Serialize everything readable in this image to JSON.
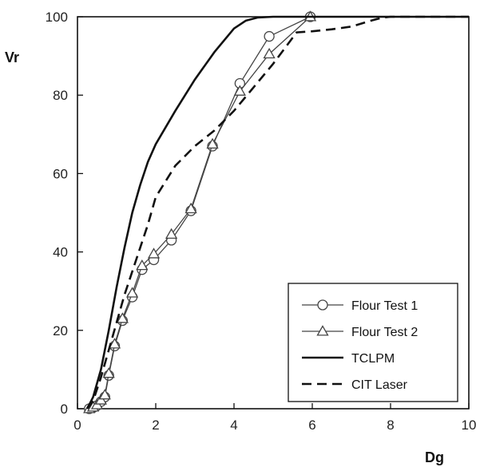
{
  "chart_data": {
    "type": "line",
    "xlabel": "Dg",
    "ylabel": "Vr",
    "xlim": [
      0,
      10
    ],
    "ylim": [
      0,
      100
    ],
    "x_ticks": [
      "0",
      "2",
      "4",
      "6",
      "8",
      "10"
    ],
    "y_ticks": [
      "0",
      "20",
      "40",
      "60",
      "80",
      "100"
    ],
    "grid": false,
    "legend_position": "bottom-right",
    "series": [
      {
        "name": "Flour Test 1",
        "style": "solid-marker-circle",
        "x": [
          0.3,
          0.4,
          0.5,
          0.6,
          0.7,
          0.8,
          0.95,
          1.15,
          1.4,
          1.65,
          1.95,
          2.4,
          2.9,
          3.45,
          4.15,
          4.9,
          5.95
        ],
        "y": [
          0,
          0.3,
          0.8,
          1.8,
          3.0,
          8.5,
          16,
          22.5,
          28.5,
          35.5,
          38,
          43,
          50.5,
          67,
          83,
          95,
          100
        ]
      },
      {
        "name": "Flour Test 2",
        "style": "solid-marker-triangle",
        "x": [
          0.3,
          0.4,
          0.5,
          0.6,
          0.7,
          0.8,
          0.95,
          1.15,
          1.4,
          1.65,
          1.95,
          2.4,
          2.9,
          3.45,
          4.15,
          4.9,
          5.95
        ],
        "y": [
          0,
          0.4,
          1.0,
          2.2,
          3.5,
          9,
          16.5,
          23,
          29.5,
          36.5,
          39.5,
          44.5,
          51,
          67.5,
          81,
          90.5,
          100
        ]
      },
      {
        "name": "TCLPM",
        "style": "solid",
        "x": [
          0.25,
          0.4,
          0.6,
          0.8,
          1.0,
          1.2,
          1.4,
          1.6,
          1.8,
          2.0,
          2.5,
          3.0,
          3.5,
          4.0,
          4.3,
          4.6,
          5.0,
          5.5,
          6.0,
          10.0
        ],
        "y": [
          0,
          3,
          10,
          20,
          31,
          41,
          50,
          57,
          63,
          67.5,
          76,
          84,
          91,
          97,
          99,
          99.8,
          100,
          100,
          100,
          100
        ]
      },
      {
        "name": "CIT Laser",
        "style": "dashed",
        "x": [
          0.25,
          0.4,
          0.6,
          0.8,
          1.0,
          1.2,
          1.5,
          1.8,
          2.0,
          2.5,
          3.0,
          3.5,
          4.0,
          4.5,
          5.0,
          5.3,
          5.6,
          6.0,
          6.5,
          7.0,
          7.5,
          7.8,
          8.0,
          10.0
        ],
        "y": [
          0,
          2,
          8,
          15,
          22,
          29,
          38,
          47,
          54,
          62,
          67,
          71,
          76,
          82,
          88,
          92,
          96,
          96.3,
          96.8,
          97.5,
          99,
          99.8,
          100,
          100
        ]
      }
    ]
  }
}
